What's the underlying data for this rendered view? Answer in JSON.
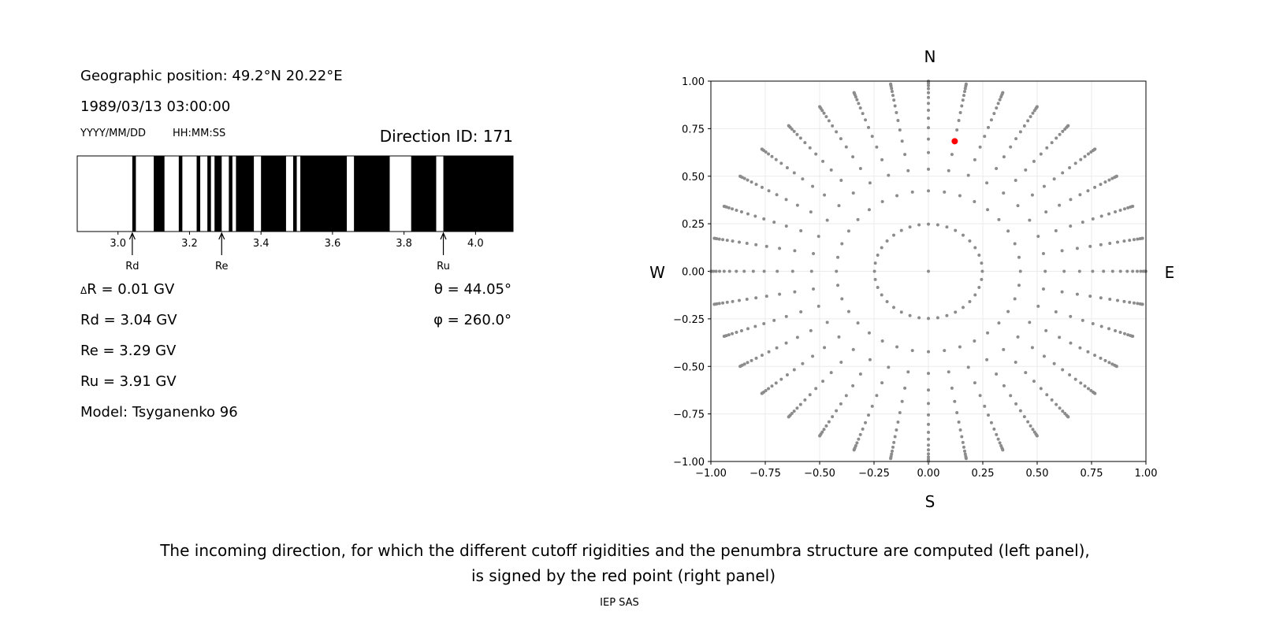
{
  "info": {
    "geo_position": "Geographic position: 49.2°N 20.22°E",
    "datetime": "1989/03/13 03:00:00",
    "date_format": "YYYY/MM/DD",
    "time_format": "HH:MM:SS",
    "direction_id": "Direction ID: 171",
    "delta_r_symbol": "Δ",
    "delta_r": "R = 0.01 GV",
    "rd": "Rd = 3.04 GV",
    "re": "Re = 3.29 GV",
    "ru": "Ru = 3.91 GV",
    "model": "Model: Tsyganenko 96",
    "theta": "θ = 44.05°",
    "phi": "φ = 260.0°"
  },
  "caption": {
    "line1": "The incoming direction, for which the different cutoff rigidities and the penumbra structure are computed (left panel),",
    "line2": "is signed by the red point (right panel)",
    "credit": "IEP SAS"
  },
  "chart_data": [
    {
      "type": "bar",
      "subtype": "penumbra-stripes",
      "xlim": [
        2.886,
        4.105
      ],
      "xticks": [
        3.0,
        3.2,
        3.4,
        3.6,
        3.8,
        4.0
      ],
      "xtick_labels": [
        "3.0",
        "3.2",
        "3.4",
        "3.6",
        "3.8",
        "4.0"
      ],
      "black_intervals": [
        [
          3.04,
          3.05
        ],
        [
          3.1,
          3.13
        ],
        [
          3.17,
          3.18
        ],
        [
          3.22,
          3.23
        ],
        [
          3.25,
          3.26
        ],
        [
          3.27,
          3.29
        ],
        [
          3.31,
          3.32
        ],
        [
          3.33,
          3.38
        ],
        [
          3.4,
          3.47
        ],
        [
          3.49,
          3.5
        ],
        [
          3.51,
          3.64
        ],
        [
          3.66,
          3.76
        ],
        [
          3.82,
          3.89
        ],
        [
          3.91,
          4.105
        ]
      ],
      "colors": {
        "stripe": "#000000",
        "background": "#ffffff"
      },
      "annotations": [
        {
          "label": "Rd",
          "value": 3.04
        },
        {
          "label": "Re",
          "value": 3.29
        },
        {
          "label": "Ru",
          "value": 3.91
        }
      ]
    },
    {
      "type": "scatter",
      "xlim": [
        -1,
        1
      ],
      "ylim": [
        -1,
        1
      ],
      "grid": true,
      "ticks": [
        -1.0,
        -0.75,
        -0.5,
        -0.25,
        0.0,
        0.25,
        0.5,
        0.75,
        1.0
      ],
      "tick_labels": [
        "−1.00",
        "−0.75",
        "−0.50",
        "−0.25",
        "0.00",
        "0.25",
        "0.50",
        "0.75",
        "1.00"
      ],
      "compass": {
        "north": "N",
        "south": "S",
        "west": "W",
        "east": "E"
      },
      "grid_points": {
        "center": [
          0,
          0
        ],
        "ring_radii": [
          0.248,
          0.423,
          0.537,
          0.624,
          0.695,
          0.755,
          0.805,
          0.847,
          0.883,
          0.914,
          0.939,
          0.96,
          0.976,
          0.988,
          0.996,
          0.9995
        ],
        "azimuth_step_deg": 10,
        "color": "#8c8c8c"
      },
      "highlight_point": {
        "x": 0.121,
        "y": 0.684,
        "color": "#ff0000"
      }
    }
  ]
}
